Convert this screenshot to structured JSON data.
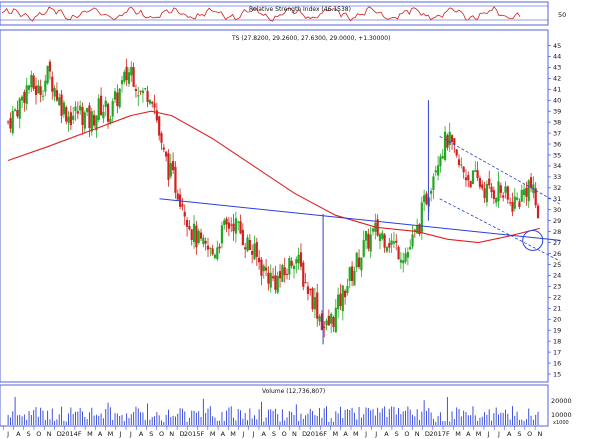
{
  "colors": {
    "up": "#22a722",
    "down": "#d21f1f",
    "ma": "#e02020",
    "trend": "#2b3fd6",
    "rsi": "#d21f1f",
    "volume": "#2b3fd6",
    "panel_line": "#2b3fd6"
  },
  "rsi_panel": {
    "label": "Relative Strength Index (46.1538)",
    "axis_label": "50"
  },
  "main_panel": {
    "label": "TS (27.8200, 29.2600, 27.6300, 29.0000, +1.30000)",
    "price_ticks": [
      "45",
      "44",
      "43",
      "42",
      "41",
      "40",
      "39",
      "38",
      "37",
      "36",
      "35",
      "34",
      "33",
      "32",
      "31",
      "30",
      "29",
      "28",
      "27",
      "26",
      "25",
      "24",
      "23",
      "22",
      "21",
      "20",
      "19",
      "18",
      "17",
      "16",
      "15"
    ]
  },
  "volume_panel": {
    "label": "Volume (12,736,807)",
    "ticks": [
      "20000",
      "10000"
    ],
    "unit": "x1000"
  },
  "x_axis": {
    "labels": [
      "J",
      "A",
      "S",
      "O",
      "N",
      "D",
      "2014",
      "F",
      "M",
      "A",
      "M",
      "J",
      "J",
      "A",
      "S",
      "O",
      "N",
      "D",
      "2015",
      "F",
      "M",
      "A",
      "M",
      "J",
      "J",
      "A",
      "S",
      "O",
      "N",
      "D",
      "2016",
      "F",
      "M",
      "A",
      "M",
      "J",
      "J",
      "A",
      "S",
      "O",
      "N",
      "D",
      "2017",
      "F",
      "M",
      "A",
      "M",
      "J",
      "J",
      "A",
      "S",
      "O",
      "N"
    ]
  },
  "chart_data": {
    "type": "candlestick",
    "title": "TS (27.8200, 29.2600, 27.6300, 29.0000, +1.30000)",
    "last_bar": {
      "open": 27.82,
      "high": 29.26,
      "low": 27.63,
      "close": 29.0,
      "change": 1.3
    },
    "rsi_value": 46.1538,
    "last_volume": 12736807,
    "y_range": [
      15,
      45.5
    ],
    "months": [
      "J",
      "A",
      "S",
      "O",
      "N",
      "D",
      "2014",
      "F",
      "M",
      "A",
      "M",
      "J",
      "J",
      "A",
      "S",
      "O",
      "N",
      "D",
      "2015",
      "F",
      "M",
      "A",
      "M",
      "J",
      "J",
      "A",
      "S",
      "O",
      "N",
      "D",
      "2016",
      "F",
      "M",
      "A",
      "M",
      "J",
      "J",
      "A",
      "S",
      "O",
      "N",
      "D",
      "2017",
      "F",
      "M",
      "A",
      "M",
      "J",
      "J",
      "A",
      "S",
      "O",
      "N"
    ],
    "close_path": [
      [
        0,
        38.0
      ],
      [
        1,
        39.5
      ],
      [
        2,
        41.5
      ],
      [
        3,
        40.8
      ],
      [
        4,
        42.5
      ],
      [
        5,
        40.0
      ],
      [
        6,
        38.5
      ],
      [
        7,
        39.0
      ],
      [
        8,
        38.0
      ],
      [
        9,
        39.5
      ],
      [
        10,
        38.8
      ],
      [
        11,
        41.0
      ],
      [
        12,
        43.0
      ],
      [
        13,
        40.5
      ],
      [
        14,
        41.0
      ],
      [
        14.5,
        38.5
      ],
      [
        15,
        35.5
      ],
      [
        16,
        33.0
      ],
      [
        17,
        31.0
      ],
      [
        18,
        28.0
      ],
      [
        19,
        26.5
      ],
      [
        20,
        26.0
      ],
      [
        21,
        28.0
      ],
      [
        22,
        29.0
      ],
      [
        23,
        27.5
      ],
      [
        24,
        26.0
      ],
      [
        25,
        24.5
      ],
      [
        26,
        23.5
      ],
      [
        27,
        24.0
      ],
      [
        28,
        26.0
      ],
      [
        29,
        23.5
      ],
      [
        30,
        21.5
      ],
      [
        31,
        19.0
      ],
      [
        32,
        20.5
      ],
      [
        33,
        23.0
      ],
      [
        34,
        25.0
      ],
      [
        35,
        27.0
      ],
      [
        36,
        28.0
      ],
      [
        37,
        27.5
      ],
      [
        38,
        26.5
      ],
      [
        39,
        26.0
      ],
      [
        40,
        28.0
      ],
      [
        41,
        31.5
      ],
      [
        42,
        35.0
      ],
      [
        43,
        36.5
      ],
      [
        44,
        34.0
      ],
      [
        45,
        33.0
      ],
      [
        46,
        32.5
      ],
      [
        47,
        31.5
      ],
      [
        48,
        32.0
      ],
      [
        49,
        30.5
      ],
      [
        50,
        31.0
      ],
      [
        51,
        32.5
      ],
      [
        52,
        29.0
      ]
    ],
    "moving_average": [
      [
        0,
        34.5
      ],
      [
        4,
        35.8
      ],
      [
        8,
        37.2
      ],
      [
        12,
        38.6
      ],
      [
        14,
        39.0
      ],
      [
        16,
        38.6
      ],
      [
        20,
        36.5
      ],
      [
        24,
        34.0
      ],
      [
        28,
        31.5
      ],
      [
        32,
        29.5
      ],
      [
        36,
        28.4
      ],
      [
        40,
        28.0
      ],
      [
        43,
        27.3
      ],
      [
        46,
        27.0
      ],
      [
        49,
        27.6
      ],
      [
        52,
        28.3
      ]
    ],
    "trendlines": [
      {
        "from": [
          14.8,
          31.0
        ],
        "to": [
          54,
          27.2
        ]
      },
      {
        "from": [
          30.8,
          17.7
        ],
        "to": [
          30.8,
          29.6
        ]
      },
      {
        "from": [
          41.1,
          29.0
        ],
        "to": [
          41.1,
          40.0
        ]
      },
      {
        "from": [
          42.2,
          36.7
        ],
        "to": [
          54,
          30.5
        ],
        "dashed": true
      },
      {
        "from": [
          42.2,
          31.0
        ],
        "to": [
          54,
          25.3
        ],
        "dashed": true
      }
    ],
    "annotation_circle": {
      "month": 51.3,
      "price": 27.2
    }
  }
}
